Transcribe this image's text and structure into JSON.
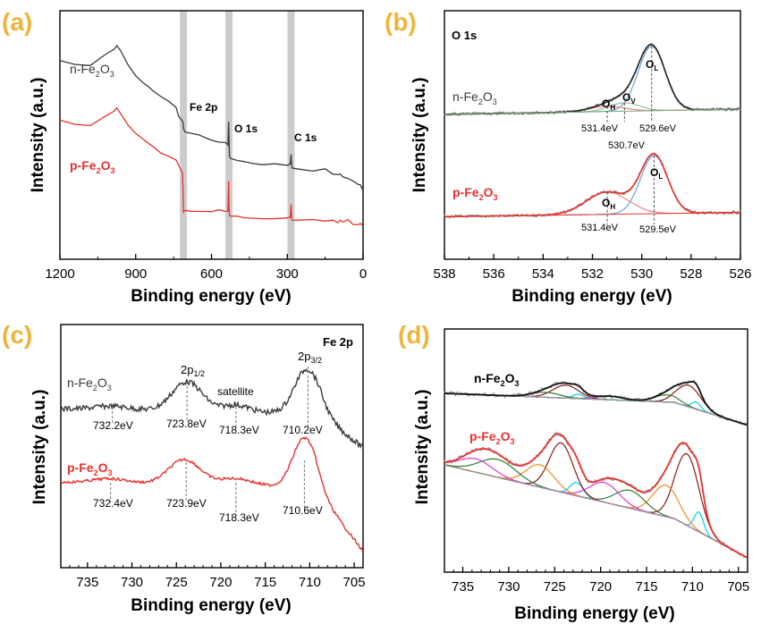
{
  "figure": {
    "panel_labels": [
      "(a)",
      "(b)",
      "(c)",
      "(d)"
    ]
  },
  "colors": {
    "panel_label": "#f0b43c",
    "n_line": "#3a3a3a",
    "p_line": "#e8302b",
    "highlight": "#cccccc",
    "blue_fit": "#5b9bd5",
    "red_fit": "#e87e7e",
    "green_fit": "#2e7d32",
    "cyan_fit": "#00d0e0",
    "magenta_fit": "#d63adf",
    "orange_fit": "#f28a1e",
    "darkred_fit": "#8b1a1a",
    "gray_base": "#9e9e9e"
  },
  "chart_data": [
    {
      "id": "a",
      "type": "line",
      "title": "",
      "xlabel": "Binding energy (eV)",
      "ylabel": "Intensity (a.u.)",
      "xlim": [
        1200,
        0
      ],
      "xticks": [
        "1200",
        "900",
        "600",
        "300",
        "0"
      ],
      "xtick_values": [
        1200,
        900,
        600,
        300,
        0
      ],
      "highlight_bands": [
        711,
        531,
        285
      ],
      "peak_labels": [
        "Fe 2p",
        "O 1s",
        "C 1s"
      ],
      "series": [
        {
          "name": "n-Fe2O3",
          "label_main": "n-Fe",
          "sub1": "2",
          "mid": "O",
          "sub2": "3",
          "x": [
            1200,
            1140,
            1080,
            1020,
            985,
            975,
            960,
            930,
            900,
            870,
            850,
            830,
            800,
            770,
            740,
            730,
            715,
            712,
            711,
            705,
            680,
            650,
            600,
            570,
            545,
            535,
            532,
            531,
            529,
            525,
            500,
            470,
            440,
            400,
            350,
            300,
            288,
            285,
            283,
            280,
            250,
            200,
            150,
            120,
            100,
            90,
            80,
            60,
            40,
            20,
            10,
            5,
            0
          ],
          "y": [
            0.82,
            0.8,
            0.79,
            0.85,
            0.88,
            0.9,
            0.87,
            0.8,
            0.74,
            0.7,
            0.68,
            0.66,
            0.63,
            0.6,
            0.57,
            0.52,
            0.5,
            0.48,
            0.46,
            0.44,
            0.43,
            0.42,
            0.4,
            0.39,
            0.38,
            0.37,
            0.5,
            0.42,
            0.31,
            0.3,
            0.29,
            0.28,
            0.27,
            0.27,
            0.27,
            0.26,
            0.27,
            0.32,
            0.26,
            0.25,
            0.24,
            0.23,
            0.24,
            0.22,
            0.21,
            0.22,
            0.2,
            0.19,
            0.18,
            0.16,
            0.16,
            0.14,
            0.14
          ]
        },
        {
          "name": "p-Fe2O3",
          "label_main": "p-Fe",
          "sub1": "2",
          "mid": "O",
          "sub2": "3",
          "x": [
            1200,
            1140,
            1080,
            1020,
            985,
            975,
            960,
            930,
            900,
            870,
            850,
            830,
            800,
            770,
            740,
            730,
            715,
            712,
            711,
            705,
            680,
            650,
            600,
            570,
            545,
            535,
            532,
            531,
            529,
            525,
            500,
            470,
            440,
            400,
            350,
            300,
            288,
            285,
            283,
            280,
            250,
            200,
            150,
            120,
            100,
            90,
            80,
            60,
            40,
            20,
            10,
            5,
            0
          ],
          "y": [
            0.5,
            0.48,
            0.47,
            0.52,
            0.55,
            0.57,
            0.54,
            0.48,
            0.43,
            0.4,
            0.38,
            0.36,
            0.33,
            0.31,
            0.29,
            0.26,
            0.22,
            0.1,
            0.01,
            0.02,
            0.02,
            0.02,
            0.02,
            0.03,
            0.02,
            0.02,
            0.18,
            0.05,
            -0.01,
            -0.01,
            -0.01,
            -0.02,
            -0.02,
            -0.02,
            -0.02,
            -0.02,
            -0.01,
            0.05,
            -0.02,
            -0.03,
            -0.03,
            -0.03,
            -0.03,
            -0.03,
            -0.04,
            -0.03,
            -0.04,
            -0.03,
            -0.05,
            -0.05,
            -0.05,
            -0.06,
            -0.06
          ]
        }
      ]
    },
    {
      "id": "b",
      "type": "line",
      "title": "O 1s",
      "xlabel": "Binding energy (eV)",
      "ylabel": "Intensity (a.u.)",
      "xlim": [
        538,
        526
      ],
      "xticks": [
        "538",
        "536",
        "534",
        "532",
        "530",
        "528",
        "526"
      ],
      "xtick_values": [
        538,
        536,
        534,
        532,
        530,
        528,
        526
      ],
      "series_labels": [
        {
          "name": "n-Fe2O3",
          "label_main": "n-Fe",
          "sub1": "2",
          "mid": "O",
          "sub2": "3"
        },
        {
          "name": "p-Fe2O3",
          "label_main": "p-Fe",
          "sub1": "2",
          "mid": "O",
          "sub2": "3"
        }
      ],
      "components": [
        {
          "spectrum": "n-Fe2O3",
          "name": "O_L",
          "center": 529.6,
          "amp": 1.0,
          "width": 0.55
        },
        {
          "spectrum": "n-Fe2O3",
          "name": "O_V",
          "center": 530.7,
          "amp": 0.13,
          "width": 0.6
        },
        {
          "spectrum": "n-Fe2O3",
          "name": "O_H",
          "center": 531.4,
          "amp": 0.08,
          "width": 0.7
        },
        {
          "spectrum": "p-Fe2O3",
          "name": "O_L",
          "center": 529.5,
          "amp": 0.65,
          "width": 0.55
        },
        {
          "spectrum": "p-Fe2O3",
          "name": "O_H",
          "center": 531.4,
          "amp": 0.25,
          "width": 0.85
        }
      ],
      "annotations": [
        {
          "text": "531.4eV",
          "spectrum": "n"
        },
        {
          "text": "530.7eV",
          "spectrum": "n"
        },
        {
          "text": "529.6eV",
          "spectrum": "n"
        },
        {
          "text": "531.4eV",
          "spectrum": "p"
        },
        {
          "text": "529.5eV",
          "spectrum": "p"
        }
      ],
      "component_labels": {
        "O_H": [
          "O",
          "H"
        ],
        "O_V": [
          "O",
          "V"
        ],
        "O_L": [
          "O",
          "L"
        ]
      }
    },
    {
      "id": "c",
      "type": "line",
      "title": "Fe 2p",
      "xlabel": "Binding energy (eV)",
      "ylabel": "Intensity (a.u.)",
      "xlim": [
        738,
        704
      ],
      "xticks": [
        "735",
        "730",
        "725",
        "720",
        "715",
        "710",
        "705"
      ],
      "xtick_values": [
        735,
        730,
        725,
        720,
        715,
        710,
        705
      ],
      "series_labels": [
        {
          "name": "n-Fe2O3",
          "label_main": "n-Fe",
          "sub1": "2",
          "mid": "O",
          "sub2": "3"
        },
        {
          "name": "p-Fe2O3",
          "label_main": "p-Fe",
          "sub1": "2",
          "mid": "O",
          "sub2": "3"
        }
      ],
      "peak_labels": {
        "p12": [
          "2p",
          "1/2"
        ],
        "p32": [
          "2p",
          "3/2"
        ],
        "satellite": "satellite"
      },
      "annotations_n": [
        "732.2eV",
        "723.8eV",
        "718.3eV",
        "710.2eV"
      ],
      "annotations_p": [
        "732.4eV",
        "723.9eV",
        "718.3eV",
        "710.6eV"
      ]
    },
    {
      "id": "d",
      "type": "line",
      "title": "",
      "xlabel": "Binding energy (eV)",
      "ylabel": "Intensity (a.u.)",
      "xlim": [
        737,
        704
      ],
      "xticks": [
        "735",
        "730",
        "725",
        "720",
        "715",
        "710",
        "705"
      ],
      "xtick_values": [
        735,
        730,
        725,
        720,
        715,
        710,
        705
      ],
      "series_labels": [
        {
          "name": "n-Fe2O3",
          "label_main": "n-Fe",
          "sub1": "2",
          "mid": "O",
          "sub2": "3"
        },
        {
          "name": "p-Fe2O3",
          "label_main": "p-Fe",
          "sub1": "2",
          "mid": "O",
          "sub2": "3"
        }
      ],
      "components_n": [
        {
          "center": 710.4,
          "amp": 0.3,
          "width": 1.3,
          "color": "darkred_fit"
        },
        {
          "center": 709.6,
          "amp": 0.1,
          "width": 0.5,
          "color": "cyan_fit"
        },
        {
          "center": 712.8,
          "amp": 0.1,
          "width": 1.3,
          "color": "green_fit"
        },
        {
          "center": 723.8,
          "amp": 0.18,
          "width": 1.4,
          "color": "darkred_fit"
        },
        {
          "center": 722.4,
          "amp": 0.06,
          "width": 0.6,
          "color": "cyan_fit"
        },
        {
          "center": 719.0,
          "amp": 0.05,
          "width": 1.5,
          "color": "magenta_fit"
        },
        {
          "center": 726.0,
          "amp": 0.07,
          "width": 1.5,
          "color": "green_fit"
        }
      ],
      "components_p": [
        {
          "center": 710.6,
          "amp": 0.8,
          "width": 1.3,
          "color": "darkred_fit"
        },
        {
          "center": 709.3,
          "amp": 0.22,
          "width": 0.5,
          "color": "cyan_fit"
        },
        {
          "center": 712.9,
          "amp": 0.35,
          "width": 1.4,
          "color": "orange_fit"
        },
        {
          "center": 716.8,
          "amp": 0.2,
          "width": 1.6,
          "color": "green_fit"
        },
        {
          "center": 719.6,
          "amp": 0.22,
          "width": 1.6,
          "color": "magenta_fit"
        },
        {
          "center": 722.6,
          "amp": 0.15,
          "width": 0.7,
          "color": "cyan_fit"
        },
        {
          "center": 724.3,
          "amp": 0.55,
          "width": 1.3,
          "color": "darkred_fit"
        },
        {
          "center": 726.6,
          "amp": 0.25,
          "width": 1.5,
          "color": "orange_fit"
        },
        {
          "center": 731.2,
          "amp": 0.2,
          "width": 2.0,
          "color": "green_fit"
        },
        {
          "center": 733.6,
          "amp": 0.15,
          "width": 1.8,
          "color": "magenta_fit"
        }
      ]
    }
  ]
}
